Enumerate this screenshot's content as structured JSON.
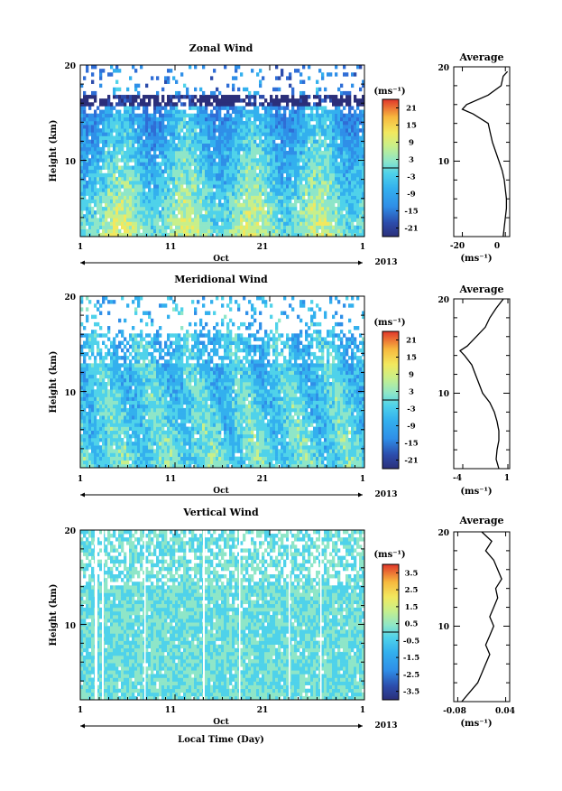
{
  "unit_label": "(ms⁻¹)",
  "colorscale": [
    "#2b2f7a",
    "#2c4cab",
    "#2f6dd6",
    "#2f8fe8",
    "#33b0ee",
    "#4fd2ea",
    "#8ee6c8",
    "#c8ef8a",
    "#f2e85e",
    "#f7b83e",
    "#f07a2e",
    "#e0362a"
  ],
  "chart_data": [
    {
      "type": "heatmap",
      "title": "Zonal Wind",
      "ylabel": "Height (km)",
      "xlabel": "",
      "x_ticks": [
        "1",
        "11",
        "21",
        "1"
      ],
      "x_tick_values": [
        1,
        11,
        21,
        31
      ],
      "xlim": [
        1,
        31
      ],
      "month_label": "Oct",
      "year_label": "2013",
      "y_ticks": [
        "20",
        "10"
      ],
      "y_tick_values": [
        20,
        10
      ],
      "ylim": [
        2,
        20
      ],
      "colorbar": {
        "ticks": [
          "21",
          "15",
          "9",
          "3",
          "-3",
          "-9",
          "-15",
          "-21"
        ],
        "values": [
          21,
          15,
          9,
          3,
          -3,
          -9,
          -15,
          -21
        ],
        "range": [
          -24,
          24
        ]
      },
      "profile": {
        "title": "Average",
        "xlabel": "(ms⁻¹)",
        "x_ticks": [
          "-20",
          "0"
        ],
        "x_tick_values": [
          -20,
          0
        ],
        "xlim": [
          -24,
          2
        ],
        "heights": [
          2,
          3,
          4,
          5,
          6,
          7,
          8,
          9,
          10,
          11,
          12,
          13,
          14,
          15,
          15.5,
          16,
          17,
          18,
          19,
          19.5
        ],
        "values": [
          -1,
          -0.5,
          0,
          0.5,
          0.5,
          0,
          -0.5,
          -1.5,
          -3,
          -4.5,
          -6,
          -7,
          -8,
          -15,
          -20,
          -18,
          -8,
          -2,
          -1,
          1
        ]
      }
    },
    {
      "type": "heatmap",
      "title": "Meridional Wind",
      "ylabel": "Height (km)",
      "xlabel": "",
      "x_ticks": [
        "1",
        "11",
        "21",
        "1"
      ],
      "x_tick_values": [
        1,
        11,
        21,
        31
      ],
      "xlim": [
        1,
        31
      ],
      "month_label": "Oct",
      "year_label": "2013",
      "y_ticks": [
        "20",
        "10"
      ],
      "y_tick_values": [
        20,
        10
      ],
      "ylim": [
        2,
        20
      ],
      "colorbar": {
        "ticks": [
          "21",
          "15",
          "9",
          "3",
          "-3",
          "-9",
          "-15",
          "-21"
        ],
        "values": [
          21,
          15,
          9,
          3,
          -3,
          -9,
          -15,
          -21
        ],
        "range": [
          -24,
          24
        ]
      },
      "profile": {
        "title": "Average",
        "xlabel": "(ms⁻¹)",
        "x_ticks": [
          "-4",
          "1"
        ],
        "x_tick_values": [
          -4,
          1
        ],
        "xlim": [
          -5,
          1.2
        ],
        "heights": [
          2,
          3,
          4,
          5,
          6,
          7,
          8,
          9,
          10,
          11,
          12,
          13,
          14,
          14.5,
          15,
          16,
          17,
          18,
          19,
          20
        ],
        "values": [
          0,
          -0.3,
          -0.2,
          0,
          0,
          -0.2,
          -0.5,
          -1,
          -1.8,
          -2.2,
          -2.6,
          -3,
          -3.8,
          -4.3,
          -3.5,
          -2.5,
          -1.5,
          -1,
          -0.3,
          0.5
        ]
      }
    },
    {
      "type": "heatmap",
      "title": "Vertical Wind",
      "ylabel": "Height (km)",
      "xlabel": "Local Time (Day)",
      "x_ticks": [
        "1",
        "11",
        "21",
        "1"
      ],
      "x_tick_values": [
        1,
        11,
        21,
        31
      ],
      "xlim": [
        1,
        31
      ],
      "month_label": "Oct",
      "year_label": "2013",
      "y_ticks": [
        "20",
        "10"
      ],
      "y_tick_values": [
        20,
        10
      ],
      "ylim": [
        2,
        20
      ],
      "colorbar": {
        "ticks": [
          "3.5",
          "2.5",
          "1.5",
          "0.5",
          "-0.5",
          "-1.5",
          "-2.5",
          "-3.5"
        ],
        "values": [
          3.5,
          2.5,
          1.5,
          0.5,
          -0.5,
          -1.5,
          -2.5,
          -3.5
        ],
        "range": [
          -4,
          4
        ]
      },
      "profile": {
        "title": "Average",
        "xlabel": "(ms⁻¹)",
        "x_ticks": [
          "-0.08",
          "0.04"
        ],
        "x_tick_values": [
          -0.08,
          0.04
        ],
        "xlim": [
          -0.09,
          0.05
        ],
        "heights": [
          2,
          3,
          4,
          5,
          6,
          7,
          8,
          9,
          10,
          11,
          12,
          13,
          14,
          15,
          16,
          17,
          18,
          19,
          20
        ],
        "values": [
          -0.07,
          -0.05,
          -0.03,
          -0.02,
          -0.01,
          0,
          -0.01,
          0,
          0.01,
          0,
          0.01,
          0.02,
          0.015,
          0.03,
          0.02,
          0.01,
          -0.01,
          0.005,
          -0.02
        ]
      }
    }
  ]
}
